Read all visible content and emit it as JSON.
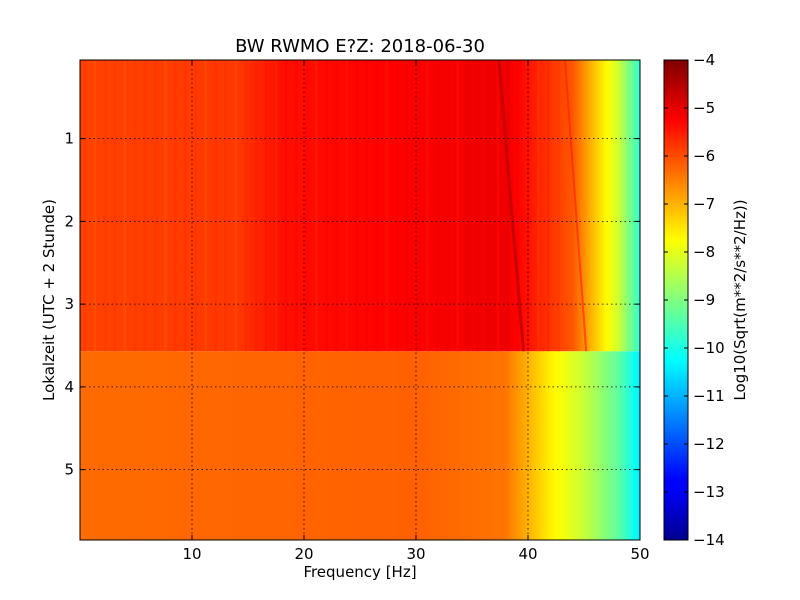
{
  "chart_data": {
    "type": "heatmap",
    "title": "BW RWMO E?Z: 2018-06-30",
    "xlabel": "Frequency [Hz]",
    "ylabel": "Lokalzeit (UTC + 2 Stunde)",
    "xlim": [
      0,
      50
    ],
    "ylim": [
      5.85,
      0.05
    ],
    "y_inverted": true,
    "grid": true,
    "x_ticks": [
      10,
      20,
      30,
      40,
      50
    ],
    "y_ticks": [
      1,
      2,
      3,
      4,
      5
    ],
    "colorbar": {
      "label": "Log10(Sqrt(m**2/s**2/Hz))",
      "colormap": "jet",
      "range": [
        -14,
        -4
      ],
      "ticks": [
        -4,
        -5,
        -6,
        -7,
        -8,
        -9,
        -10,
        -11,
        -12,
        -13,
        -14
      ]
    },
    "regimes": [
      {
        "time_range": [
          0.05,
          3.57
        ],
        "level_profile": [
          {
            "freq": 0,
            "level": -5.9
          },
          {
            "freq": 14,
            "level": -5.8
          },
          {
            "freq": 18,
            "level": -5.4
          },
          {
            "freq": 38,
            "level": -5.1
          },
          {
            "freq": 41,
            "level": -5.6
          },
          {
            "freq": 44,
            "level": -6.1
          },
          {
            "freq": 46,
            "level": -7.2
          },
          {
            "freq": 48,
            "level": -8.2
          },
          {
            "freq": 50,
            "level": -9.8
          }
        ]
      },
      {
        "time_range": [
          3.57,
          5.85
        ],
        "level_profile": [
          {
            "freq": 0,
            "level": -6.3
          },
          {
            "freq": 30,
            "level": -6.2
          },
          {
            "freq": 38,
            "level": -6.4
          },
          {
            "freq": 40,
            "level": -7.0
          },
          {
            "freq": 42,
            "level": -7.6
          },
          {
            "freq": 45,
            "level": -8.3
          },
          {
            "freq": 48,
            "level": -9.3
          },
          {
            "freq": 50,
            "level": -10.4
          }
        ]
      }
    ],
    "features": [
      {
        "kind": "dark-streak",
        "from": {
          "freq": 37.4,
          "time": 0.05
        },
        "to": {
          "freq": 39.6,
          "time": 3.57
        },
        "level": -4.7
      },
      {
        "kind": "faint-streak",
        "from": {
          "freq": 43.3,
          "time": 0.05
        },
        "to": {
          "freq": 45.2,
          "time": 3.57
        },
        "level": -5.5
      }
    ]
  }
}
